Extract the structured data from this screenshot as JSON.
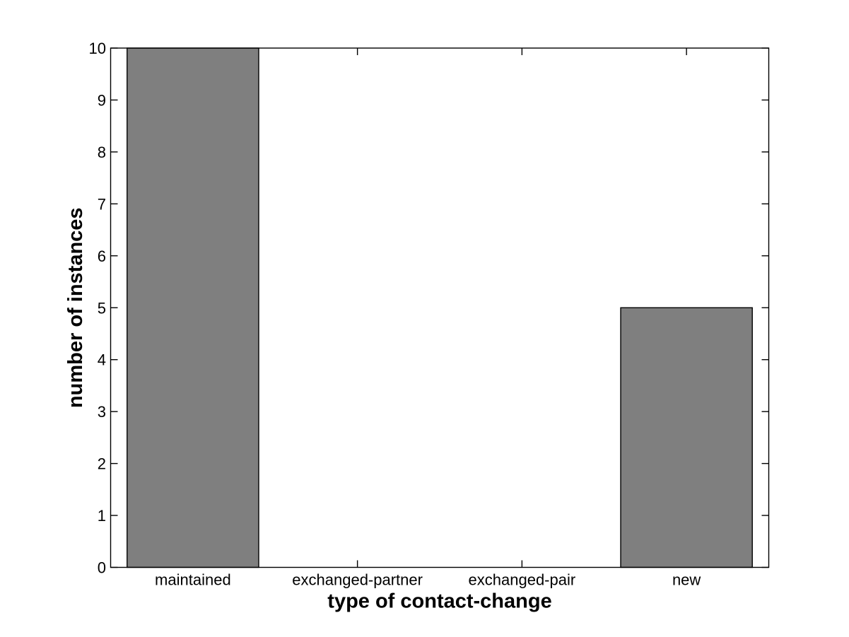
{
  "chart_data": {
    "type": "bar",
    "categories": [
      "maintained",
      "exchanged-partner",
      "exchanged-pair",
      "new"
    ],
    "values": [
      10,
      0,
      0,
      5
    ],
    "title": "",
    "xlabel": "type of contact-change",
    "ylabel": "number of instances",
    "ylim": [
      0,
      10
    ],
    "yticks": [
      0,
      1,
      2,
      3,
      4,
      5,
      6,
      7,
      8,
      9,
      10
    ],
    "bar_width_fraction": 0.8,
    "grid": false,
    "legend": null,
    "colors": {
      "bar_fill": "#7f7f7f",
      "bar_edge": "#000000",
      "axis": "#000000",
      "text": "#000000",
      "background": "#ffffff",
      "plot_background": "#ffffff"
    }
  }
}
